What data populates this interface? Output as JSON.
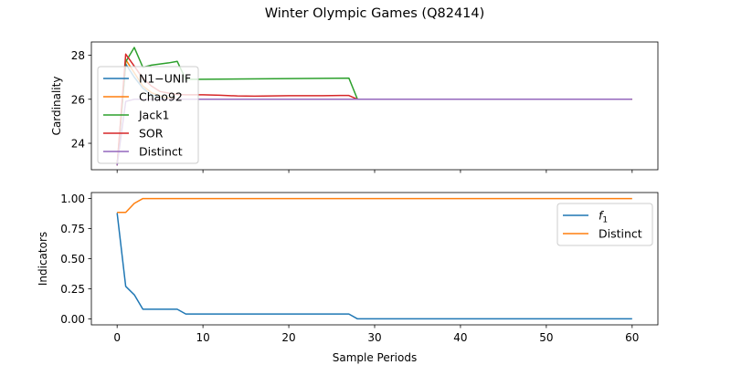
{
  "figure_title": "Winter Olympic Games (Q82414)",
  "colors": {
    "blue": "#1f77b4",
    "orange": "#ff7f0e",
    "green": "#2ca02c",
    "red": "#d62728",
    "purple": "#9467bd"
  },
  "chart_data": [
    {
      "type": "line",
      "title": "",
      "xlabel": "",
      "ylabel": "Cardinality",
      "xlim": [
        -3,
        63
      ],
      "ylim": [
        22.8,
        28.6
      ],
      "xticks": [
        0,
        10,
        20,
        30,
        40,
        50,
        60
      ],
      "yticks": [
        24,
        26,
        28
      ],
      "ytick_labels": [
        "24",
        "26",
        "28"
      ],
      "show_xtick_labels": false,
      "legend_position": "upper-left",
      "series": [
        {
          "name": "N1−UNIF",
          "color": "#1f77b4",
          "x": [
            0,
            1,
            2,
            3,
            4,
            5,
            6,
            7,
            8,
            28,
            60
          ],
          "y": [
            23.0,
            27.6,
            27.0,
            26.5,
            26.2,
            26.1,
            26.05,
            26.0,
            26.0,
            26.0,
            26.0
          ]
        },
        {
          "name": "Chao92",
          "color": "#ff7f0e",
          "x": [
            0,
            1,
            2,
            3,
            4,
            5,
            6,
            7,
            8,
            28,
            60
          ],
          "y": [
            23.0,
            27.8,
            27.2,
            26.6,
            26.3,
            26.15,
            26.05,
            26.0,
            26.0,
            26.0,
            26.0
          ]
        },
        {
          "name": "Jack1",
          "color": "#2ca02c",
          "x": [
            0,
            1,
            2,
            3,
            4,
            5,
            6,
            7,
            8,
            27,
            28,
            60
          ],
          "y": [
            23.0,
            27.7,
            28.35,
            27.45,
            27.55,
            27.6,
            27.65,
            27.72,
            26.9,
            26.96,
            26.0,
            26.0
          ]
        },
        {
          "name": "SOR",
          "color": "#d62728",
          "x": [
            0,
            1,
            2,
            3,
            4,
            5,
            6,
            7,
            8,
            10,
            12,
            14,
            16,
            18,
            20,
            22,
            24,
            26,
            27,
            28,
            60
          ],
          "y": [
            23.0,
            28.05,
            27.5,
            26.95,
            26.6,
            26.35,
            26.28,
            26.22,
            26.2,
            26.2,
            26.18,
            26.15,
            26.14,
            26.15,
            26.16,
            26.16,
            26.16,
            26.17,
            26.17,
            26.0,
            26.0
          ]
        },
        {
          "name": "Distinct",
          "color": "#9467bd",
          "x": [
            0,
            1,
            2,
            3,
            4,
            60
          ],
          "y": [
            23.0,
            25.9,
            26.0,
            26.0,
            26.0,
            26.0
          ]
        }
      ]
    },
    {
      "type": "line",
      "title": "",
      "xlabel": "Sample Periods",
      "ylabel": "Indicators",
      "xlim": [
        -3,
        63
      ],
      "ylim": [
        -0.05,
        1.05
      ],
      "xticks": [
        0,
        10,
        20,
        30,
        40,
        50,
        60
      ],
      "xtick_labels": [
        "0",
        "10",
        "20",
        "30",
        "40",
        "50",
        "60"
      ],
      "yticks": [
        0.0,
        0.25,
        0.5,
        0.75,
        1.0
      ],
      "ytick_labels": [
        "0.00",
        "0.25",
        "0.50",
        "0.75",
        "1.00"
      ],
      "legend_position": "upper-right",
      "series": [
        {
          "name": "f1",
          "color": "#1f77b4",
          "x": [
            0,
            1,
            2,
            3,
            4,
            5,
            6,
            7,
            8,
            27,
            28,
            60
          ],
          "y": [
            0.88,
            0.27,
            0.2,
            0.08,
            0.08,
            0.08,
            0.08,
            0.08,
            0.04,
            0.04,
            0.0,
            0.0
          ]
        },
        {
          "name": "Distinct",
          "color": "#ff7f0e",
          "x": [
            0,
            1,
            2,
            3,
            4,
            60
          ],
          "y": [
            0.885,
            0.885,
            0.96,
            1.0,
            1.0,
            1.0
          ]
        }
      ]
    }
  ]
}
